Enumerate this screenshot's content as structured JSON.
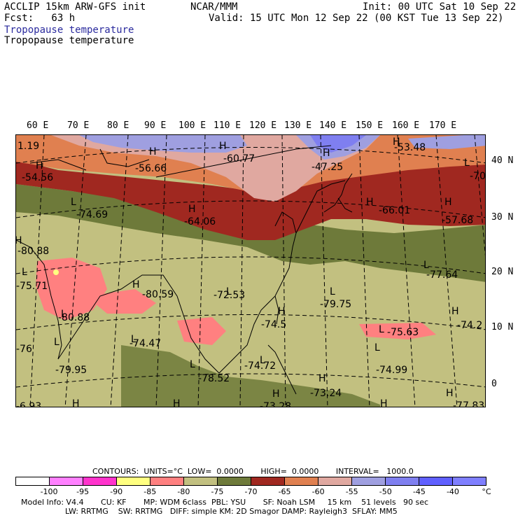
{
  "header": {
    "model": "ACCLIP 15km ARW-GFS init",
    "fcst": "Fcst:   63 h",
    "org": "NCAR/MMM",
    "init": "Init: 00 UTC Sat 10 Sep 22",
    "valid": "Valid: 15 UTC Mon 12 Sep 22 (00 KST Tue 13 Sep 22)",
    "field1": "Tropopause temperature",
    "field2": "Tropopause temperature"
  },
  "map": {
    "lon_labels": [
      "60 E",
      "70 E",
      "80 E",
      "90 E",
      "100 E",
      "110 E",
      "120 E",
      "130 E",
      "140 E",
      "150 E",
      "160 E",
      "170 E"
    ],
    "lat_labels": [
      "40 N",
      "30 N",
      "20 N",
      "10 N",
      "0"
    ],
    "extrema": [
      {
        "kind": "value",
        "text": "1.19"
      },
      {
        "kind": "H",
        "text": "H"
      },
      {
        "kind": "value",
        "text": "-54.56"
      },
      {
        "kind": "H",
        "text": "H"
      },
      {
        "kind": "value",
        "text": "-56.66"
      },
      {
        "kind": "H",
        "text": "H"
      },
      {
        "kind": "value",
        "text": "-60.77"
      },
      {
        "kind": "H",
        "text": "H"
      },
      {
        "kind": "value",
        "text": "-47.25"
      },
      {
        "kind": "H",
        "text": "H"
      },
      {
        "kind": "value",
        "text": "-53.48"
      },
      {
        "kind": "L",
        "text": "L"
      },
      {
        "kind": "value",
        "text": "-70."
      },
      {
        "kind": "L",
        "text": "L"
      },
      {
        "kind": "value",
        "text": "-74.69"
      },
      {
        "kind": "H",
        "text": "H"
      },
      {
        "kind": "value",
        "text": "-64.06"
      },
      {
        "kind": "H",
        "text": "H"
      },
      {
        "kind": "value",
        "text": "-66.01"
      },
      {
        "kind": "H",
        "text": "H"
      },
      {
        "kind": "value",
        "text": "-57.68"
      },
      {
        "kind": "H",
        "text": "H"
      },
      {
        "kind": "value",
        "text": "-80.88"
      },
      {
        "kind": "L",
        "text": "L"
      },
      {
        "kind": "value",
        "text": "-75.71"
      },
      {
        "kind": "H",
        "text": "H"
      },
      {
        "kind": "value",
        "text": "-80.59"
      },
      {
        "kind": "L",
        "text": "L"
      },
      {
        "kind": "value",
        "text": "-72.53"
      },
      {
        "kind": "L",
        "text": "L"
      },
      {
        "kind": "value",
        "text": "-77.64"
      },
      {
        "kind": "L",
        "text": "L"
      },
      {
        "kind": "value",
        "text": "-80.88"
      },
      {
        "kind": "L",
        "text": "L"
      },
      {
        "kind": "value",
        "text": "-79.75"
      },
      {
        "kind": "H",
        "text": "H"
      },
      {
        "kind": "value",
        "text": "-74.5"
      },
      {
        "kind": "H",
        "text": "H"
      },
      {
        "kind": "value",
        "text": "-74.2"
      },
      {
        "kind": "value",
        "text": "-76"
      },
      {
        "kind": "L",
        "text": "L"
      },
      {
        "kind": "value",
        "text": "-74.47"
      },
      {
        "kind": "L",
        "text": "L"
      },
      {
        "kind": "value",
        "text": "-75.63"
      },
      {
        "kind": "L",
        "text": "L"
      },
      {
        "kind": "value",
        "text": "-79.95"
      },
      {
        "kind": "L",
        "text": "L"
      },
      {
        "kind": "value",
        "text": "-74.72"
      },
      {
        "kind": "L",
        "text": "L"
      },
      {
        "kind": "value",
        "text": "-74.99"
      },
      {
        "kind": "L",
        "text": "L"
      },
      {
        "kind": "value",
        "text": "-78.52"
      },
      {
        "kind": "H",
        "text": "H"
      },
      {
        "kind": "value",
        "text": "-73.24"
      },
      {
        "kind": "H",
        "text": "H"
      },
      {
        "kind": "value",
        "text": "-6.93"
      },
      {
        "kind": "H",
        "text": "H"
      },
      {
        "kind": "H",
        "text": "H"
      },
      {
        "kind": "value",
        "text": "-73.28"
      },
      {
        "kind": "H",
        "text": "H"
      },
      {
        "kind": "H",
        "text": "H"
      },
      {
        "kind": "value",
        "text": "-77.83"
      }
    ]
  },
  "legend": {
    "contours_line": "CONTOURS:  UNITS=°C  LOW=  0.0000       HIGH=  0.0000       INTERVAL=   1000.0",
    "colors": [
      "#ffffff",
      "#ff80ff",
      "#ff33cc",
      "#ffff80",
      "#ff8080",
      "#c2c080",
      "#6e7a3a",
      "#a02820",
      "#e08050",
      "#e0a8a0",
      "#9f9fe0",
      "#7f7ff0",
      "#6060ff",
      "#7f7fff"
    ],
    "ticks": [
      "-100",
      "-95",
      "-90",
      "-85",
      "-80",
      "-75",
      "-70",
      "-65",
      "-60",
      "-55",
      "-50",
      "-45",
      "-40",
      "°C"
    ]
  },
  "footer": {
    "line1": "Model Info: V4.4       CU: KF       MP: WDM 6class  PBL: YSU       SF: Noah LSM     15 km    51 levels   90 sec",
    "line2": "                  LW: RRTMG    SW: RRTMG   DIFF: simple KM: 2D Smagor DAMP: Rayleigh3  SFLAY: MM5"
  }
}
